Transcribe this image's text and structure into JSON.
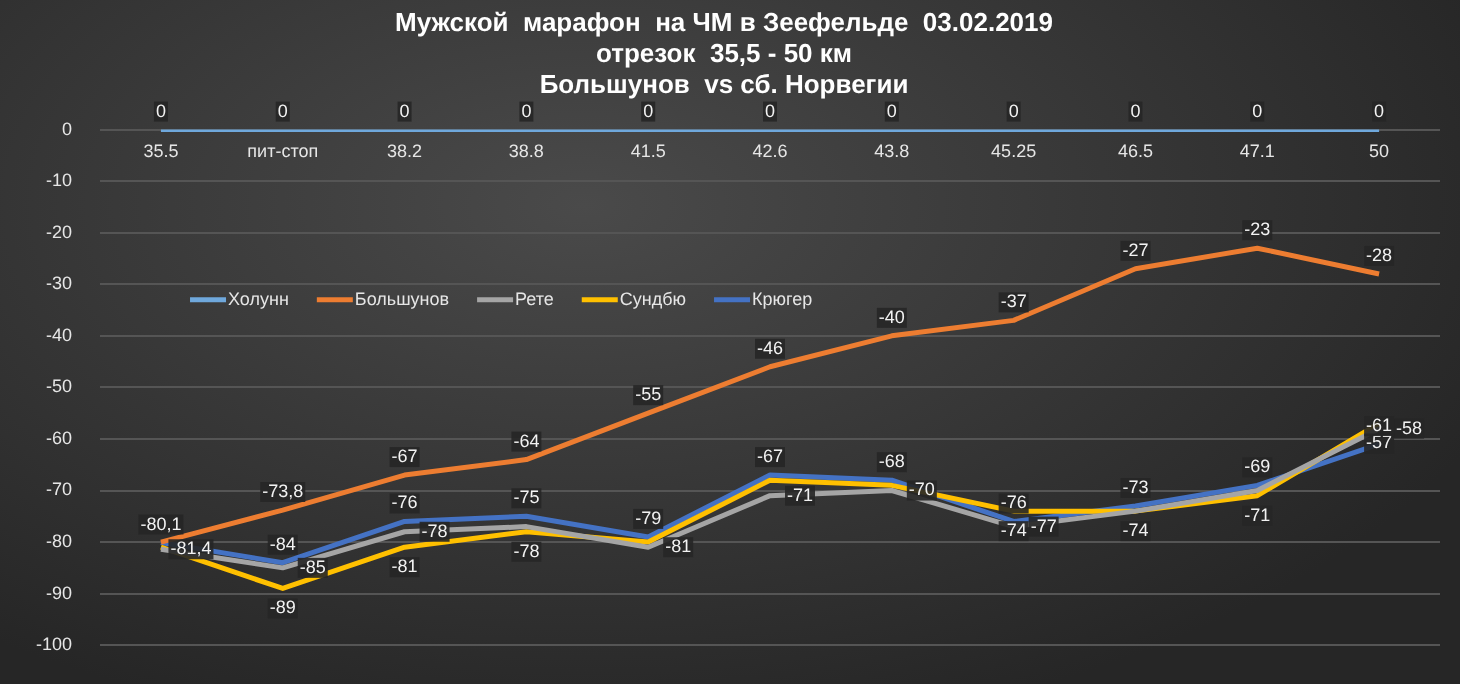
{
  "chart_data": {
    "type": "line",
    "title": "Мужской  марафон  на ЧМ в Зеефельде  03.02.2019",
    "subtitle": "отрезок  35,5 - 50 км\nБольшунов  vs сб. Норвегии",
    "categories": [
      "35.5",
      "пит-стоп",
      "38.2",
      "38.8",
      "41.5",
      "42.6",
      "43.8",
      "45.25",
      "46.5",
      "47.1",
      "50"
    ],
    "series": [
      {
        "name": "Холунн",
        "color": "#6fa8dc",
        "values": [
          0,
          0,
          0,
          0,
          0,
          0,
          0,
          0,
          0,
          0,
          0
        ],
        "value_labels": [
          "0",
          "0",
          "0",
          "0",
          "0",
          "0",
          "0",
          "0",
          "0",
          "0",
          "0"
        ]
      },
      {
        "name": "Большунов",
        "color": "#ed7d31",
        "values": [
          -80,
          -73.8,
          -67,
          -64,
          -55,
          -46,
          -40,
          -37,
          -27,
          -23,
          -28
        ],
        "value_labels": [
          null,
          "-73,8",
          "-67",
          "-64",
          "-55",
          "-46",
          "-40",
          "-37",
          "-27",
          "-23",
          "-28"
        ]
      },
      {
        "name": "Рете",
        "color": "#a5a5a5",
        "values": [
          -81.4,
          -85,
          -78,
          -77,
          -81,
          -71,
          -70,
          -77,
          -74,
          -70,
          -58
        ],
        "value_labels": [
          "-81,4",
          "-85",
          "-78",
          null,
          "-81",
          "-71",
          "-70",
          "-77",
          null,
          null,
          "-58"
        ]
      },
      {
        "name": "Сундбю",
        "color": "#ffc000",
        "values": [
          -81,
          -89,
          -81,
          -78,
          -80,
          -68,
          -69,
          -74,
          -74,
          -71,
          -57
        ],
        "value_labels": [
          null,
          "-89",
          "-81",
          "-78",
          null,
          null,
          null,
          "-74",
          "-74",
          "-71",
          "-57"
        ]
      },
      {
        "name": "Крюгер",
        "color": "#4472c4",
        "values": [
          -80.1,
          -84,
          -76,
          -75,
          -79,
          -67,
          -68,
          -76,
          -73,
          -69,
          -61
        ],
        "value_labels": [
          "-80,1",
          "-84",
          "-76",
          "-75",
          "-79",
          "-67",
          "-68",
          "-76",
          "-73",
          "-69",
          "-61"
        ]
      }
    ],
    "ylim": [
      -100,
      0
    ],
    "yticks": [
      0,
      -10,
      -20,
      -30,
      -40,
      -50,
      -60,
      -70,
      -80,
      -90,
      -100
    ],
    "grid": "y",
    "legend": "top left",
    "marker": "none",
    "line_style": "solid"
  }
}
